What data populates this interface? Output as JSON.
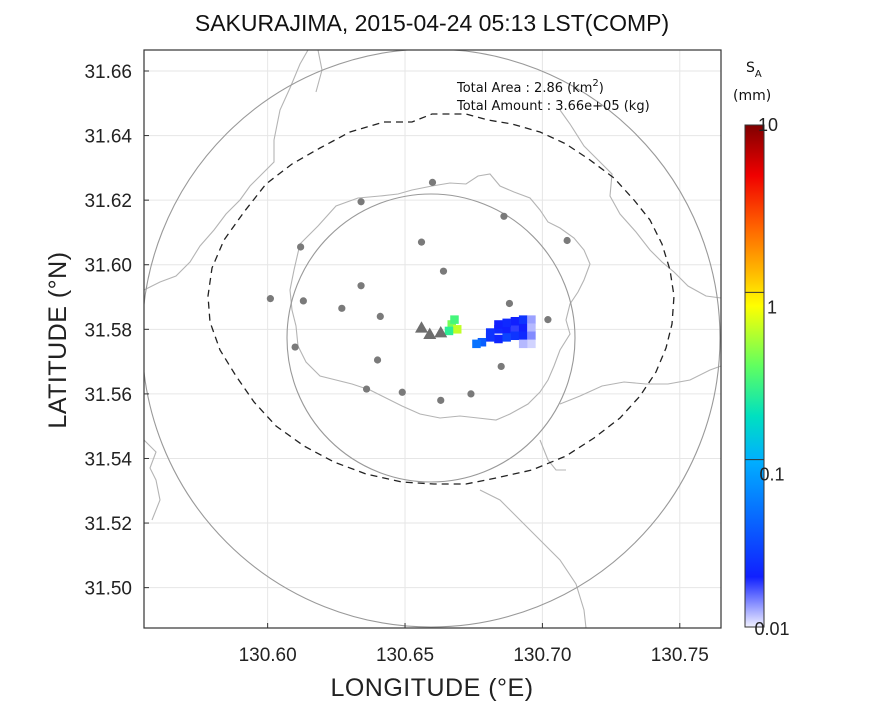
{
  "chart_data": {
    "type": "heatmap",
    "title": "SAKURAJIMA, 2015-04-24 05:13 LST(COMP)",
    "xlabel": "LONGITUDE (°E)",
    "ylabel": "LATITUDE (°N)",
    "xlim": [
      130.555,
      130.765
    ],
    "ylim": [
      31.4875,
      31.6665
    ],
    "x_ticks": [
      "130.60",
      "130.65",
      "130.70",
      "130.75"
    ],
    "y_ticks": [
      "31.50",
      "31.52",
      "31.54",
      "31.56",
      "31.58",
      "31.60",
      "31.62",
      "31.64",
      "31.66"
    ],
    "grid": true,
    "annotations": {
      "area_label": "Total Area   : 2.86 (km",
      "area_sup": "2",
      "area_close": ")",
      "amount_label": "Total Amount : 3.66e+05 (kg)"
    },
    "colorbar": {
      "title": "S",
      "title_sub": "A",
      "unit": "(mm)",
      "scale": "log",
      "range": [
        0.01,
        10
      ],
      "tick_labels": [
        "10",
        "1",
        "0.1",
        "0.01"
      ],
      "tick_values": [
        10,
        1,
        0.1,
        0.01
      ]
    },
    "volcano_vents": [
      {
        "lon": 130.656,
        "lat": 31.5805
      },
      {
        "lon": 130.659,
        "lat": 31.5785
      },
      {
        "lon": 130.663,
        "lat": 31.579
      }
    ],
    "stations": [
      {
        "lon": 130.601,
        "lat": 31.5895
      },
      {
        "lon": 130.612,
        "lat": 31.6055
      },
      {
        "lon": 130.613,
        "lat": 31.5888
      },
      {
        "lon": 130.61,
        "lat": 31.5745
      },
      {
        "lon": 130.627,
        "lat": 31.5865
      },
      {
        "lon": 130.634,
        "lat": 31.5935
      },
      {
        "lon": 130.641,
        "lat": 31.584
      },
      {
        "lon": 130.634,
        "lat": 31.6195
      },
      {
        "lon": 130.656,
        "lat": 31.607
      },
      {
        "lon": 130.66,
        "lat": 31.6255
      },
      {
        "lon": 130.664,
        "lat": 31.598
      },
      {
        "lon": 130.686,
        "lat": 31.615
      },
      {
        "lon": 130.709,
        "lat": 31.6075
      },
      {
        "lon": 130.688,
        "lat": 31.588
      },
      {
        "lon": 130.702,
        "lat": 31.583
      },
      {
        "lon": 130.685,
        "lat": 31.5685
      },
      {
        "lon": 130.64,
        "lat": 31.5705
      },
      {
        "lon": 130.636,
        "lat": 31.5615
      },
      {
        "lon": 130.649,
        "lat": 31.5605
      },
      {
        "lon": 130.663,
        "lat": 31.558
      },
      {
        "lon": 130.674,
        "lat": 31.56
      }
    ],
    "ash_cells": [
      {
        "lon": 130.667,
        "lat": 31.5815,
        "value": 0.4
      },
      {
        "lon": 130.668,
        "lat": 31.583,
        "value": 0.3
      },
      {
        "lon": 130.669,
        "lat": 31.58,
        "value": 0.6
      },
      {
        "lon": 130.666,
        "lat": 31.5795,
        "value": 0.25
      },
      {
        "lon": 130.681,
        "lat": 31.579,
        "value": 0.025
      },
      {
        "lon": 130.684,
        "lat": 31.58,
        "value": 0.022
      },
      {
        "lon": 130.687,
        "lat": 31.58,
        "value": 0.02
      },
      {
        "lon": 130.69,
        "lat": 31.5805,
        "value": 0.018
      },
      {
        "lon": 130.693,
        "lat": 31.5805,
        "value": 0.02
      },
      {
        "lon": 130.681,
        "lat": 31.5775,
        "value": 0.025
      },
      {
        "lon": 130.684,
        "lat": 31.577,
        "value": 0.021
      },
      {
        "lon": 130.687,
        "lat": 31.5775,
        "value": 0.03
      },
      {
        "lon": 130.69,
        "lat": 31.578,
        "value": 0.025
      },
      {
        "lon": 130.693,
        "lat": 31.578,
        "value": 0.022
      },
      {
        "lon": 130.684,
        "lat": 31.5815,
        "value": 0.02
      },
      {
        "lon": 130.687,
        "lat": 31.582,
        "value": 0.022
      },
      {
        "lon": 130.69,
        "lat": 31.5825,
        "value": 0.02
      },
      {
        "lon": 130.693,
        "lat": 31.583,
        "value": 0.025
      },
      {
        "lon": 130.678,
        "lat": 31.576,
        "value": 0.04
      },
      {
        "lon": 130.676,
        "lat": 31.5755,
        "value": 0.05
      },
      {
        "lon": 130.696,
        "lat": 31.583,
        "value": 0.013
      },
      {
        "lon": 130.696,
        "lat": 31.5805,
        "value": 0.012
      },
      {
        "lon": 130.696,
        "lat": 31.578,
        "value": 0.014
      },
      {
        "lon": 130.696,
        "lat": 31.5755,
        "value": 0.011
      },
      {
        "lon": 130.693,
        "lat": 31.5755,
        "value": 0.012
      }
    ]
  }
}
